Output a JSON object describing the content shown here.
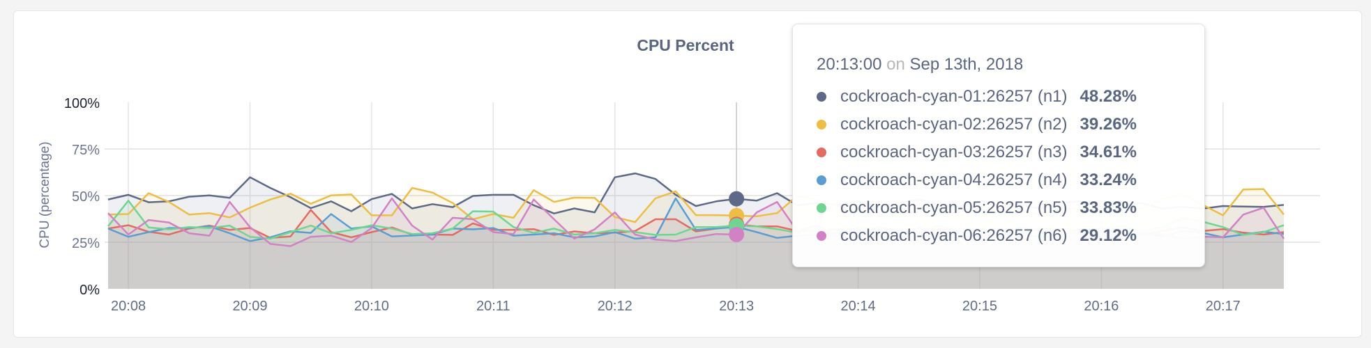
{
  "chart_data": {
    "type": "area",
    "title": "CPU Percent",
    "ylabel": "CPU (percentage)",
    "xlabel": "",
    "ylim": [
      0,
      100
    ],
    "yticks": [
      "0%",
      "25%",
      "50%",
      "75%",
      "100%"
    ],
    "ytick_values": [
      0,
      25,
      50,
      75,
      100
    ],
    "xticks": [
      "20:08",
      "20:09",
      "20:10",
      "20:11",
      "20:12",
      "20:13",
      "20:14",
      "20:15",
      "20:16",
      "20:17"
    ],
    "x_start": "20:07:50",
    "x_end": "20:17:30",
    "x_interval_seconds": 10,
    "grid": true,
    "legend": "none",
    "hover_time": "20:13:00",
    "series": [
      {
        "name": "cockroach-cyan-01:26257 (n1)",
        "color": "#5d6986",
        "values": [
          47.9,
          50.4,
          46.4,
          46.9,
          49.4,
          50.1,
          48.8,
          59.8,
          54.1,
          49.1,
          43.3,
          46.9,
          41.6,
          48.1,
          50.9,
          43.1,
          45.4,
          43.8,
          49.8,
          50.4,
          50.4,
          44.8,
          40.4,
          43.1,
          41.0,
          59.8,
          61.9,
          58.9,
          50.4,
          44.4,
          46.9,
          48.28,
          47.3,
          51.3,
          44.8,
          46,
          45,
          47,
          44,
          46,
          48,
          45,
          44,
          47,
          46,
          45,
          43,
          46,
          47,
          44,
          45,
          46,
          43,
          44,
          43,
          44.4,
          44.1,
          43.9,
          45.0
        ]
      },
      {
        "name": "cockroach-cyan-02:26257 (n2)",
        "color": "#edbd45",
        "values": [
          39.8,
          40.1,
          51.3,
          46.6,
          39.8,
          40.6,
          38.3,
          43.5,
          47.9,
          51.0,
          45.6,
          50.1,
          50.6,
          39.4,
          39.4,
          54.1,
          51.6,
          46.0,
          37.3,
          40.1,
          38.1,
          52.9,
          46.6,
          48.9,
          48.8,
          38.5,
          35.8,
          48.5,
          52.3,
          39.5,
          39.5,
          39.26,
          38.9,
          40.6,
          49.8,
          48,
          44,
          41,
          46,
          40,
          42,
          45,
          39,
          43,
          47,
          41,
          40,
          44,
          42,
          46,
          40,
          43,
          48,
          51,
          45,
          39.4,
          53.3,
          53.5,
          39.8
        ]
      },
      {
        "name": "cockroach-cyan-03:26257 (n3)",
        "color": "#e26b63",
        "values": [
          32.3,
          34.1,
          30.6,
          29.1,
          32.3,
          33.9,
          31.6,
          32.6,
          27.3,
          28.1,
          42.3,
          30.4,
          27.6,
          30.4,
          32.9,
          29.1,
          29.1,
          28.9,
          35.1,
          31.6,
          31.6,
          32.0,
          28.9,
          30.8,
          29.8,
          30.1,
          31.0,
          37.3,
          37.3,
          30.8,
          32.3,
          34.61,
          33.5,
          33.5,
          31.0,
          31,
          32,
          30,
          33,
          31,
          30,
          32,
          31,
          29,
          30,
          33,
          31,
          30,
          32,
          31,
          30,
          29,
          31,
          33,
          31,
          32.0,
          30.1,
          29.1,
          30.4
        ]
      },
      {
        "name": "cockroach-cyan-04:26257 (n4)",
        "color": "#5b9dd0",
        "values": [
          32.3,
          27.9,
          30.4,
          32.6,
          32.6,
          33.5,
          29.8,
          25.6,
          27.6,
          30.9,
          30.0,
          40.1,
          32.3,
          33.5,
          28.1,
          28.6,
          29.1,
          32.3,
          31.9,
          32.6,
          28.5,
          29.1,
          29.8,
          27.6,
          28.1,
          30.4,
          26.9,
          27.6,
          48.5,
          31.6,
          32.3,
          33.24,
          30.4,
          27.3,
          28.5,
          29,
          30,
          28,
          31,
          30,
          29,
          28,
          30,
          31,
          29,
          30,
          28,
          29,
          31,
          30,
          29,
          30,
          28,
          31,
          30,
          27.6,
          29.1,
          30.6,
          29.4
        ]
      },
      {
        "name": "cockroach-cyan-05:26257 (n5)",
        "color": "#70d492",
        "values": [
          33.5,
          47.3,
          32.9,
          31.9,
          33.1,
          32.6,
          33.9,
          27.9,
          26.9,
          30.4,
          33.9,
          29.8,
          31.6,
          34.1,
          32.3,
          29.4,
          29.8,
          32.3,
          41.6,
          41.4,
          33.1,
          30.0,
          32.3,
          29.1,
          29.8,
          31.6,
          30.4,
          28.9,
          29.1,
          33.1,
          33.1,
          33.83,
          33.5,
          32.0,
          30.1,
          31,
          30,
          33,
          32,
          29,
          31,
          34,
          30,
          32,
          31,
          29,
          33,
          31,
          30,
          32,
          34,
          31,
          33,
          38,
          36,
          33.1,
          28.9,
          30.4,
          34.1
        ]
      },
      {
        "name": "cockroach-cyan-06:26257 (n6)",
        "color": "#d182c4",
        "values": [
          40.6,
          29.1,
          36.9,
          35.6,
          29.8,
          28.5,
          46.6,
          33.1,
          24.1,
          22.9,
          27.9,
          28.5,
          25.1,
          32.6,
          48.5,
          33.9,
          26.4,
          38.1,
          37.3,
          30.4,
          29.4,
          47.9,
          37.3,
          26.9,
          31.9,
          41.0,
          29.1,
          26.4,
          25.6,
          27.6,
          29.4,
          29.12,
          41.0,
          46.6,
          31.0,
          34,
          28,
          31,
          30,
          27,
          33,
          29,
          31,
          28,
          32,
          30,
          27,
          31,
          29,
          33,
          28,
          30,
          29,
          27,
          28,
          27.6,
          39.8,
          43.5,
          26.9
        ]
      }
    ]
  },
  "tooltip": {
    "time": "20:13:00",
    "on": "on",
    "date": "Sep 13th, 2018",
    "rows": [
      {
        "name": "cockroach-cyan-01:26257 (n1)",
        "value": "48.28%"
      },
      {
        "name": "cockroach-cyan-02:26257 (n2)",
        "value": "39.26%"
      },
      {
        "name": "cockroach-cyan-03:26257 (n3)",
        "value": "34.61%"
      },
      {
        "name": "cockroach-cyan-04:26257 (n4)",
        "value": "33.24%"
      },
      {
        "name": "cockroach-cyan-05:26257 (n5)",
        "value": "33.83%"
      },
      {
        "name": "cockroach-cyan-06:26257 (n6)",
        "value": "29.12%"
      }
    ]
  }
}
